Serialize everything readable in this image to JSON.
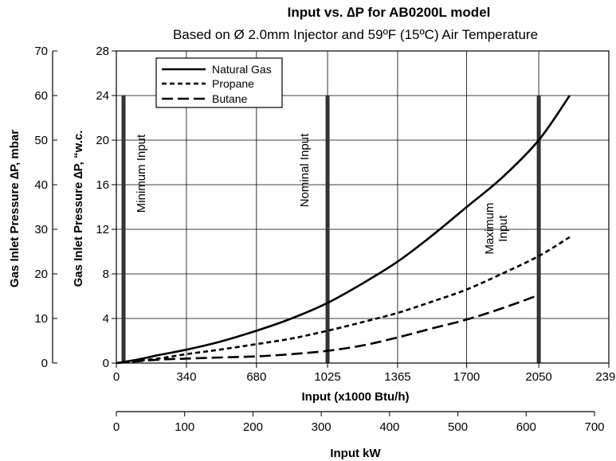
{
  "chart_data": {
    "type": "line",
    "title": "Input vs. ∆P for AB0200L  model",
    "subtitle": "Based on Ø 2.0mm Injector and 59ºF (15ºC) Air Temperature",
    "xlabel": "Input (x1000 Btu/h)",
    "xlabel2": "Input kW",
    "ylabel": "Gas Inlet Pressure ∆P, “w.c.",
    "ylabel2": "Gas Inlet Pressure ∆P, mbar",
    "xlim": [
      0,
      2390
    ],
    "ylim": [
      0,
      28
    ],
    "xlim_kw": [
      0,
      700
    ],
    "ylim_mbar": [
      0,
      70
    ],
    "x_ticks": [
      "0",
      "340",
      "680",
      "1025",
      "1365",
      "1700",
      "2050",
      "2390"
    ],
    "y_ticks": [
      "0",
      "4",
      "8",
      "12",
      "16",
      "20",
      "24",
      "28"
    ],
    "kw_ticks": [
      "0",
      "100",
      "200",
      "300",
      "400",
      "500",
      "600",
      "700"
    ],
    "mbar_ticks": [
      "0",
      "10",
      "20",
      "30",
      "40",
      "50",
      "60",
      "70"
    ],
    "grid": true,
    "legend_position": "top-left",
    "series": [
      {
        "name": "Natural Gas",
        "style": "solid",
        "x": [
          0,
          100,
          200,
          340,
          500,
          680,
          850,
          1025,
          1200,
          1365,
          1530,
          1700,
          1870,
          2050,
          2200
        ],
        "y": [
          0,
          0.3,
          0.7,
          1.2,
          1.9,
          2.9,
          4.0,
          5.4,
          7.2,
          9.1,
          11.4,
          14.0,
          16.6,
          20.0,
          24.0
        ]
      },
      {
        "name": "Propane",
        "style": "dashed",
        "x": [
          0,
          100,
          200,
          340,
          500,
          680,
          850,
          1025,
          1200,
          1365,
          1530,
          1700,
          1870,
          2050,
          2200
        ],
        "y": [
          0,
          0.2,
          0.4,
          0.8,
          1.2,
          1.7,
          2.2,
          2.9,
          3.7,
          4.5,
          5.5,
          6.6,
          8.0,
          9.6,
          11.3
        ]
      },
      {
        "name": "Butane",
        "style": "long-dashed",
        "x": [
          0,
          200,
          340,
          500,
          680,
          850,
          1025,
          1200,
          1365,
          1530,
          1700,
          1870,
          2050
        ],
        "y": [
          0,
          0.3,
          0.4,
          0.5,
          0.6,
          0.8,
          1.1,
          1.6,
          2.3,
          3.1,
          3.9,
          4.9,
          6.1
        ]
      }
    ],
    "markers": [
      {
        "label": "Minimum Input",
        "x": 35,
        "y_top": 24
      },
      {
        "label": "Nominal Input",
        "x": 1025,
        "y_top": 24
      },
      {
        "label": "Maximum Input",
        "label_lines": [
          "Maximum",
          "Input"
        ],
        "x": 2050,
        "y_top": 24
      }
    ]
  }
}
